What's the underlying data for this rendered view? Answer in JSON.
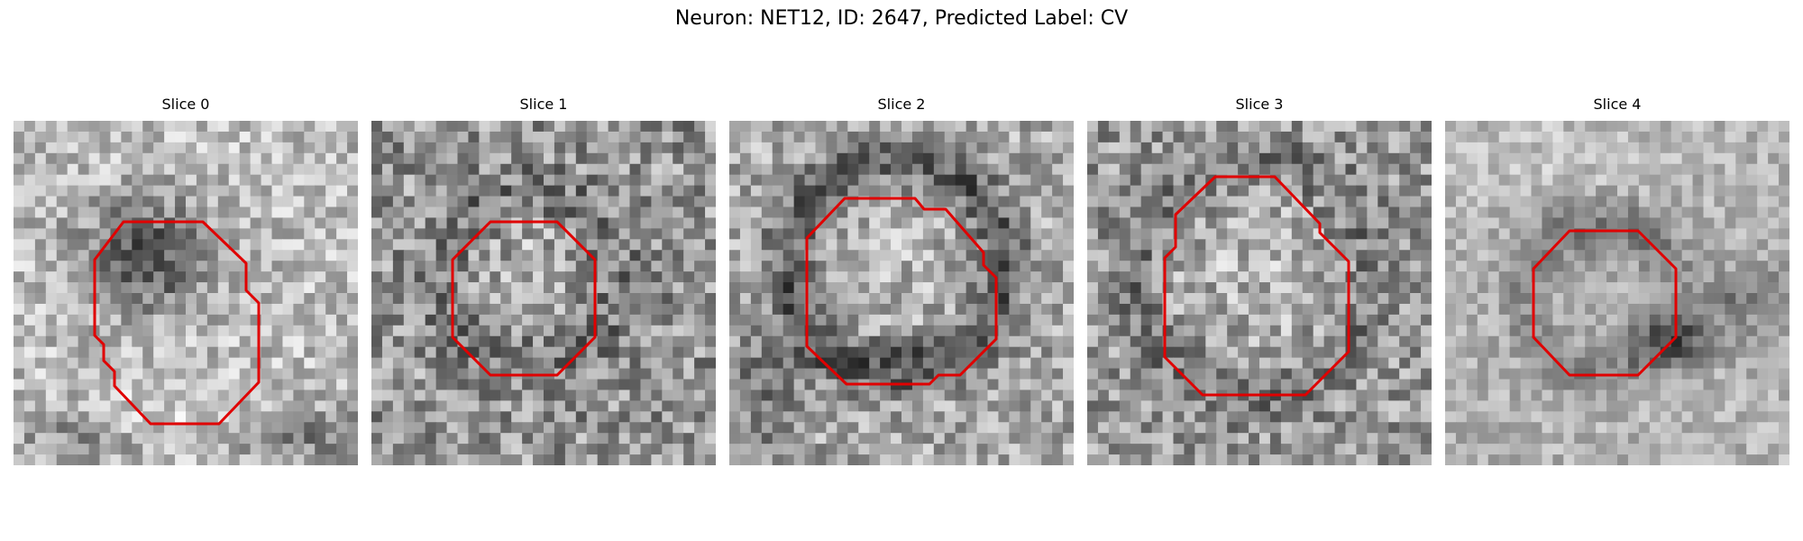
{
  "figure": {
    "title": "Neuron: NET12, ID: 2647, Predicted Label: CV"
  },
  "slices": [
    {
      "title": "Slice 0",
      "icon": "grayscale-patch-with-red-contour"
    },
    {
      "title": "Slice 1",
      "icon": "grayscale-patch-with-red-contour"
    },
    {
      "title": "Slice 2",
      "icon": "grayscale-patch-with-red-contour"
    },
    {
      "title": "Slice 3",
      "icon": "grayscale-patch-with-red-contour"
    },
    {
      "title": "Slice 4",
      "icon": "grayscale-patch-with-red-contour"
    }
  ],
  "colors": {
    "background": "#ffffff",
    "contour": "#e00000"
  }
}
